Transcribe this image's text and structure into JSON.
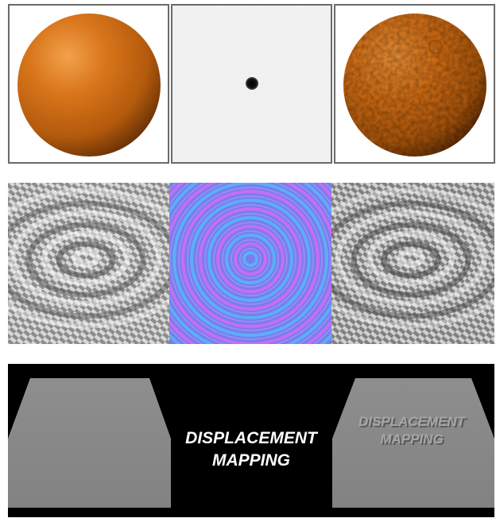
{
  "rows": [
    {
      "panels": [
        "sphere-plain",
        "height-map",
        "sphere-bumped"
      ]
    },
    {
      "panels": [
        "ripple-shaded",
        "normal-map",
        "ripple-mapped"
      ]
    },
    {
      "panels": [
        "displacement-demo"
      ]
    }
  ],
  "displacement": {
    "label_line1": "DISPLACEMENT",
    "label_line2": "MAPPING",
    "embossed_line1": "DISPLACEMENT",
    "embossed_line2": "MAPPING"
  },
  "colors": {
    "sphere_orange": "#c86410",
    "normal_map_blue": "#7a7cf0",
    "background_black": "#000000",
    "plane_gray": "#8a8a8a"
  }
}
